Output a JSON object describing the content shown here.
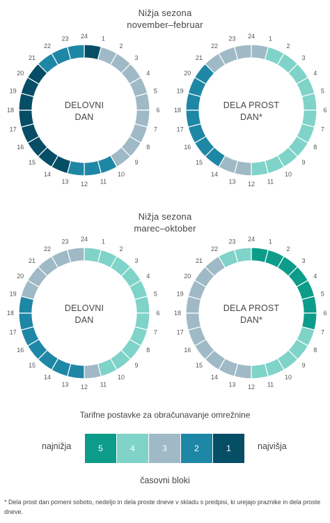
{
  "colors": {
    "level_1": "#0d9c8a",
    "level_2": "#7fd3c8",
    "level_3": "#9fbac6",
    "level_4": "#1f87a6",
    "level_5": "#064d66"
  },
  "hours": [
    "1",
    "2",
    "3",
    "4",
    "5",
    "6",
    "7",
    "8",
    "9",
    "10",
    "11",
    "12",
    "13",
    "14",
    "15",
    "16",
    "17",
    "18",
    "19",
    "20",
    "21",
    "22",
    "23",
    "24"
  ],
  "seasons": [
    {
      "title_line1": "Nižja sezona",
      "title_line2": "november–februar",
      "dials": [
        {
          "center_line1": "DELOVNI",
          "center_line2": "DAN",
          "levels": [
            5,
            3,
            3,
            3,
            3,
            3,
            3,
            3,
            3,
            3,
            4,
            4,
            4,
            5,
            5,
            5,
            5,
            5,
            5,
            5,
            5,
            4,
            4,
            4
          ]
        },
        {
          "center_line1": "DELA PROST",
          "center_line2": "DAN*",
          "levels": [
            3,
            2,
            2,
            2,
            2,
            2,
            2,
            2,
            2,
            2,
            2,
            2,
            3,
            3,
            4,
            4,
            4,
            4,
            4,
            4,
            4,
            3,
            3,
            3
          ]
        }
      ]
    },
    {
      "title_line1": "Nižja sezona",
      "title_line2": "marec–oktober",
      "dials": [
        {
          "center_line1": "DELOVNI",
          "center_line2": "DAN",
          "levels": [
            2,
            2,
            2,
            2,
            2,
            2,
            2,
            2,
            2,
            2,
            2,
            3,
            4,
            4,
            4,
            4,
            4,
            4,
            4,
            3,
            3,
            3,
            3,
            3
          ]
        },
        {
          "center_line1": "DELA PROST",
          "center_line2": "DAN*",
          "levels": [
            1,
            1,
            1,
            1,
            1,
            1,
            1,
            2,
            2,
            2,
            2,
            2,
            3,
            3,
            3,
            3,
            3,
            3,
            3,
            3,
            3,
            3,
            2,
            2
          ]
        }
      ]
    }
  ],
  "legend": {
    "title": "Tarifne postavke za obračunavanje omrežnine",
    "low_label": "najnižja",
    "high_label": "najvišja",
    "cells": [
      {
        "label": "5",
        "level": 1
      },
      {
        "label": "4",
        "level": 2
      },
      {
        "label": "3",
        "level": 3
      },
      {
        "label": "2",
        "level": 4
      },
      {
        "label": "1",
        "level": 5
      }
    ],
    "caption": "časovni bloki"
  },
  "footnote": "* Dela prost dan pomeni soboto, nedeljo in dela proste dneve v skladu s predpisi, ki urejajo praznike in dela proste dneve."
}
